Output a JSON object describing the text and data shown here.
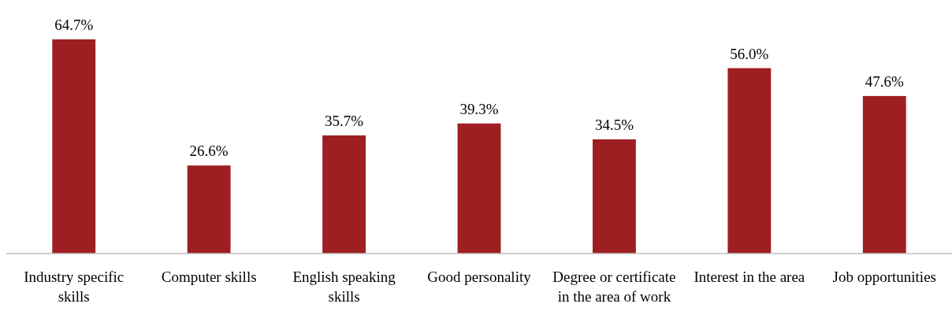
{
  "chart_data": {
    "type": "bar",
    "categories": [
      "Industry specific skills",
      "Computer skills",
      "English speaking skills",
      "Good personality",
      "Degree or certificate in the area of work",
      "Interest in the area",
      "Job opportunities"
    ],
    "values": [
      64.7,
      26.6,
      35.7,
      39.3,
      34.5,
      56.0,
      47.6
    ],
    "value_labels": [
      "64.7%",
      "26.6%",
      "35.7%",
      "39.3%",
      "34.5%",
      "56.0%",
      "47.6%"
    ],
    "color": "#9e1f22"
  }
}
